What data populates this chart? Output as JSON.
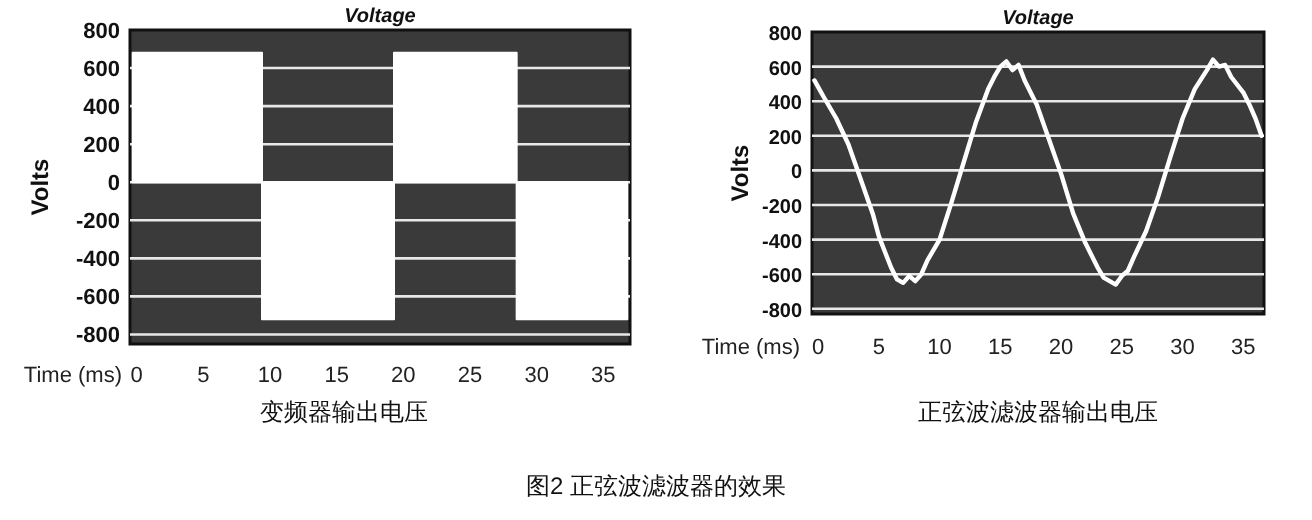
{
  "chart_data": [
    {
      "type": "area",
      "title": "Voltage",
      "xlabel": "Time (ms)",
      "ylabel": "Volts",
      "annotations": [
        "变频器输出电压"
      ],
      "color": "#ffffff",
      "grid": "y",
      "x": [
        -0.3,
        9.4,
        9.4,
        19.3,
        19.3,
        28.5,
        28.5,
        36.8
      ],
      "values": [
        680,
        680,
        -720,
        -720,
        680,
        680,
        -720,
        -720
      ],
      "xlim": [
        -0.5,
        37
      ],
      "ylim": [
        -850,
        800
      ],
      "xticks": [
        0,
        5,
        10,
        15,
        20,
        25,
        30,
        35
      ],
      "yticks": [
        -800,
        -600,
        -400,
        -200,
        0,
        200,
        400,
        600,
        800
      ]
    },
    {
      "type": "line",
      "title": "Voltage",
      "xlabel": "Time (ms)",
      "ylabel": "Volts",
      "annotations": [
        "正弦波滤波器输出电压",
        "图2 正弦波滤波器的效果"
      ],
      "color": "#ffffff",
      "grid": "y",
      "x": [
        -0.3,
        0.5,
        1.5,
        2.5,
        3.5,
        4.5,
        5,
        5.5,
        6,
        6.5,
        7,
        7.5,
        8,
        8.5,
        9,
        10,
        11,
        12,
        13,
        14,
        14.5,
        15,
        15.5,
        16,
        16.5,
        17,
        18,
        19,
        20,
        21,
        22,
        23,
        23.5,
        24,
        24.5,
        25,
        25.5,
        26,
        27,
        28,
        29,
        30,
        31,
        32,
        32.5,
        33,
        33.5,
        34,
        35,
        35.5,
        36,
        36.5
      ],
      "values": [
        520,
        420,
        300,
        150,
        -50,
        -250,
        -380,
        -470,
        -560,
        -630,
        -650,
        -610,
        -640,
        -600,
        -520,
        -400,
        -180,
        50,
        280,
        470,
        540,
        600,
        630,
        580,
        610,
        520,
        380,
        180,
        -20,
        -250,
        -420,
        -560,
        -620,
        -640,
        -660,
        -610,
        -580,
        -500,
        -350,
        -150,
        80,
        300,
        470,
        580,
        640,
        600,
        610,
        540,
        450,
        380,
        300,
        200
      ],
      "xlim": [
        -0.5,
        36.7
      ],
      "ylim": [
        -830,
        800
      ],
      "xticks": [
        0,
        5,
        10,
        15,
        20,
        25,
        30,
        35
      ],
      "yticks": [
        -800,
        -600,
        -400,
        -200,
        0,
        200,
        400,
        600,
        800
      ]
    }
  ]
}
